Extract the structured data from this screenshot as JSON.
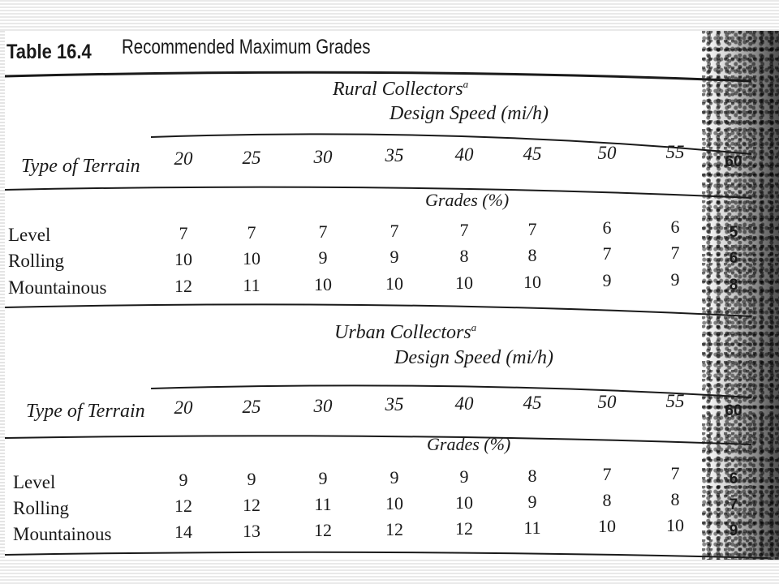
{
  "table": {
    "label": "Table 16.4",
    "title": "Recommended Maximum Grades",
    "speed_caption": "Design Speed (mi/h)",
    "terrain_header": "Type of Terrain",
    "grades_caption": "Grades (%)",
    "speeds": [
      "20",
      "25",
      "30",
      "35",
      "40",
      "45",
      "50",
      "55",
      "60"
    ],
    "sections": [
      {
        "name": "Rural Collectors",
        "footnote_mark": "a",
        "rows": [
          {
            "terrain": "Level",
            "values": [
              "7",
              "7",
              "7",
              "7",
              "7",
              "7",
              "6",
              "6",
              "5"
            ]
          },
          {
            "terrain": "Rolling",
            "values": [
              "10",
              "10",
              "9",
              "9",
              "8",
              "8",
              "7",
              "7",
              "6"
            ]
          },
          {
            "terrain": "Mountainous",
            "values": [
              "12",
              "11",
              "10",
              "10",
              "10",
              "10",
              "9",
              "9",
              "8"
            ]
          }
        ]
      },
      {
        "name": "Urban Collectors",
        "footnote_mark": "a",
        "rows": [
          {
            "terrain": "Level",
            "values": [
              "9",
              "9",
              "9",
              "9",
              "9",
              "8",
              "7",
              "7",
              "6"
            ]
          },
          {
            "terrain": "Rolling",
            "values": [
              "12",
              "12",
              "11",
              "10",
              "10",
              "9",
              "8",
              "8",
              "7"
            ]
          },
          {
            "terrain": "Mountainous",
            "values": [
              "14",
              "13",
              "12",
              "12",
              "12",
              "11",
              "10",
              "10",
              "9"
            ]
          }
        ]
      }
    ]
  }
}
